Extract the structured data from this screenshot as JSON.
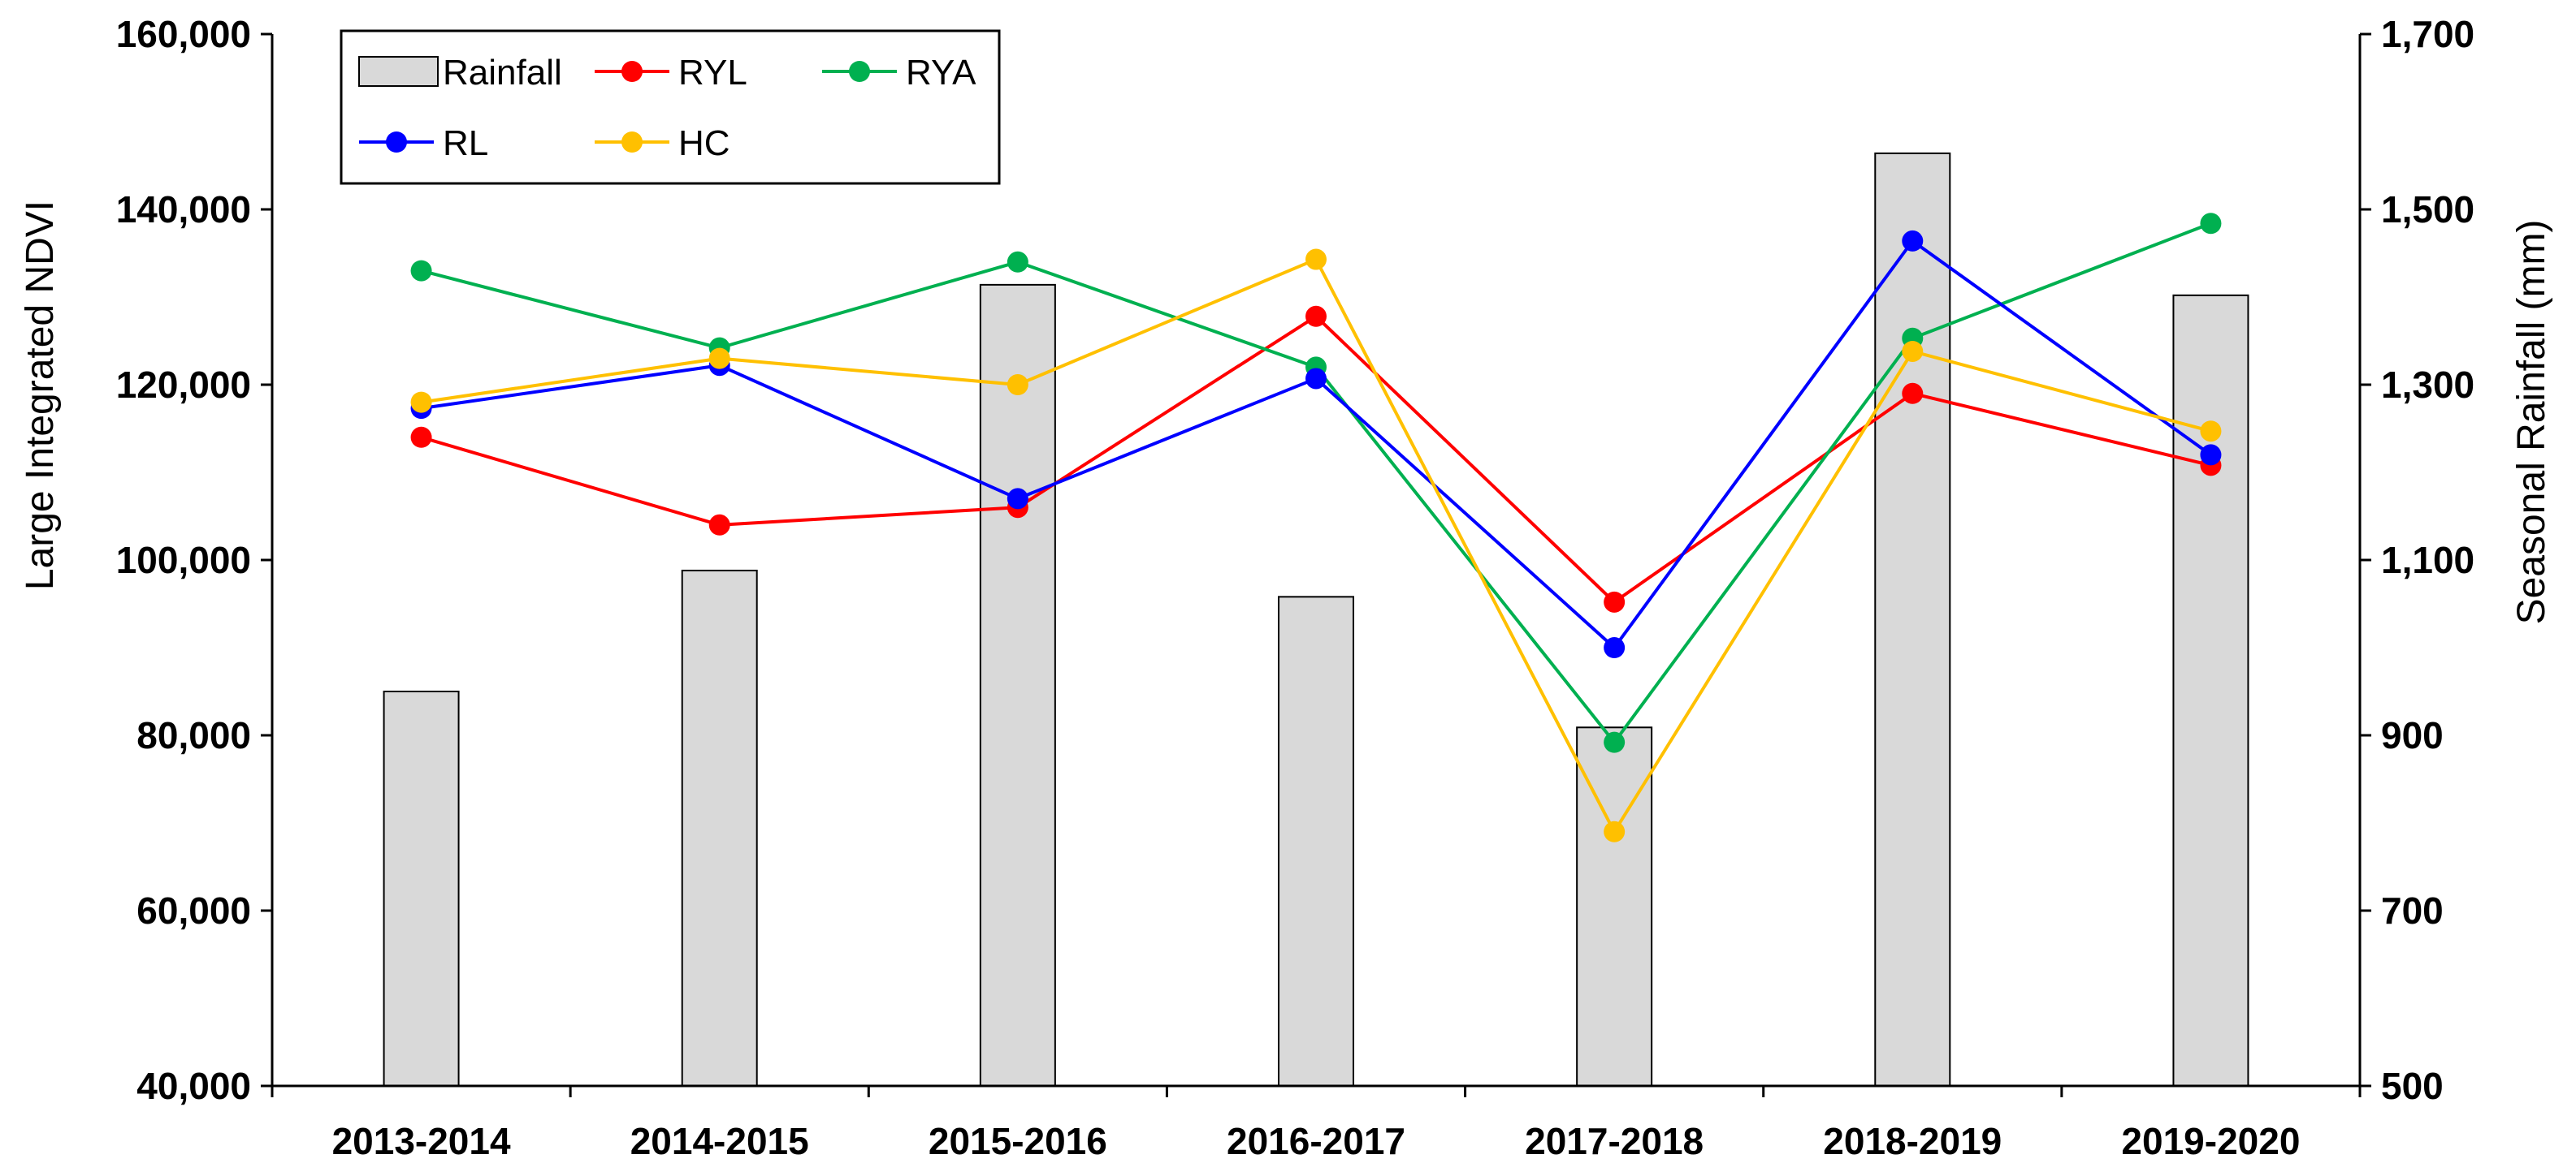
{
  "chart_data": {
    "type": "bar+line",
    "categories": [
      "2013-2014",
      "2014-2015",
      "2015-2016",
      "2016-2017",
      "2017-2018",
      "2018-2019",
      "2019-2020"
    ],
    "y_left": {
      "label": "Large Integrated NDVI",
      "lim": [
        40000,
        160000
      ],
      "ticks": [
        40000,
        60000,
        80000,
        100000,
        120000,
        140000,
        160000
      ],
      "tick_labels": [
        "40,000",
        "60,000",
        "80,000",
        "100,000",
        "120,000",
        "140,000",
        "160,000"
      ]
    },
    "y_right": {
      "label": "Seasonal Rainfall (mm)",
      "lim": [
        500,
        1700
      ],
      "ticks": [
        500,
        700,
        900,
        1100,
        1300,
        1500,
        1700
      ],
      "tick_labels": [
        "500",
        "700",
        "900",
        "1,100",
        "1,300",
        "1,500",
        "1,700"
      ]
    },
    "bars": {
      "name": "Rainfall",
      "axis": "right",
      "color": "#d9d9d9",
      "values": [
        950,
        1088,
        1414,
        1058,
        909,
        1564,
        1402
      ]
    },
    "series": [
      {
        "name": "RYL",
        "color": "#ff0000",
        "values": [
          114000,
          104000,
          106000,
          127800,
          95200,
          119000,
          110800
        ]
      },
      {
        "name": "RYA",
        "color": "#00b050",
        "values": [
          133000,
          124200,
          134000,
          122000,
          79200,
          125300,
          138400
        ]
      },
      {
        "name": "RL",
        "color": "#0000ff",
        "values": [
          117300,
          122200,
          107000,
          120700,
          90000,
          136400,
          112000
        ]
      },
      {
        "name": "HC",
        "color": "#ffc000",
        "values": [
          118000,
          123000,
          120000,
          134300,
          69000,
          123800,
          114700
        ]
      }
    ],
    "legend_placement": "top-left",
    "grid": false
  }
}
